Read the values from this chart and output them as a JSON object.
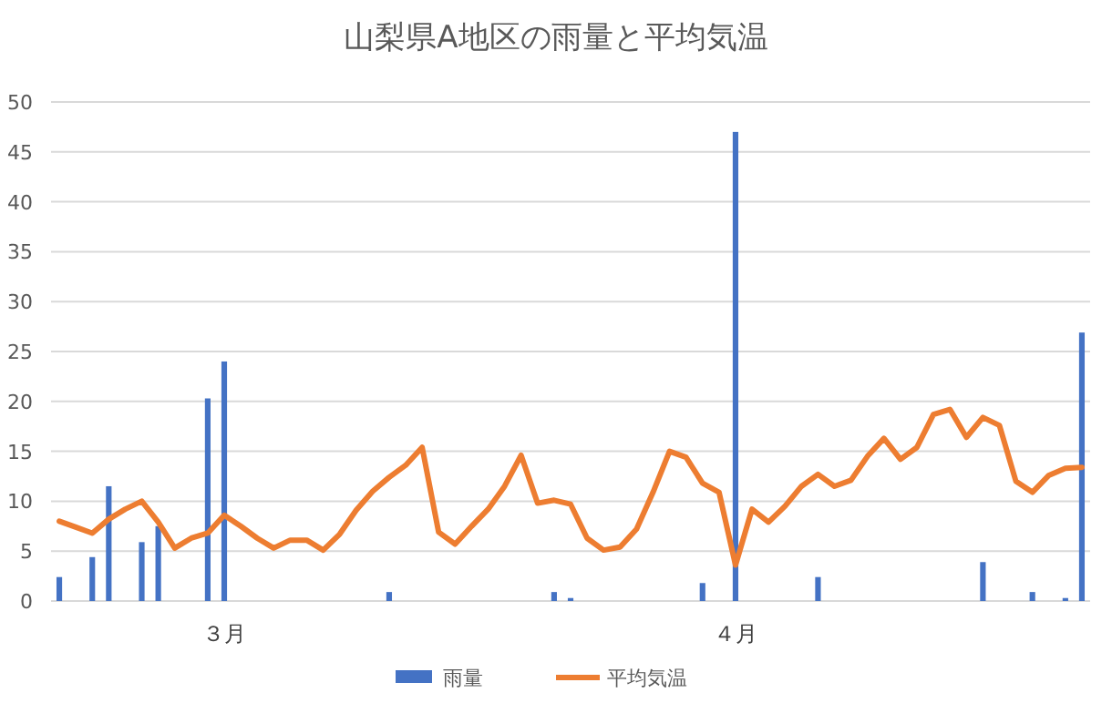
{
  "chart_data": {
    "type": "bar",
    "title": "山梨県A地区の雨量と平均気温",
    "categories": [
      null,
      null,
      null,
      null,
      null,
      null,
      null,
      null,
      null,
      null,
      "３月",
      null,
      null,
      null,
      null,
      null,
      null,
      null,
      null,
      null,
      null,
      null,
      null,
      null,
      null,
      null,
      null,
      null,
      null,
      null,
      null,
      null,
      null,
      null,
      null,
      null,
      null,
      null,
      null,
      null,
      null,
      "４月",
      null,
      null,
      null,
      null,
      null,
      null,
      null,
      null,
      null,
      null,
      null,
      null,
      null,
      null,
      null,
      null,
      null,
      null,
      null,
      null,
      null
    ],
    "series": [
      {
        "name": "雨量",
        "color": "#4472c4",
        "values": [
          2.4,
          0,
          4.4,
          11.5,
          0,
          5.9,
          7.5,
          0,
          0,
          20.3,
          24,
          0,
          0,
          0,
          0,
          0,
          0,
          0,
          0,
          0,
          0.9,
          0,
          0,
          0,
          0,
          0,
          0,
          0,
          0,
          0,
          0.9,
          0.3,
          0,
          0,
          0,
          0,
          0,
          0,
          0,
          1.8,
          0,
          47,
          0,
          0,
          0,
          0,
          2.4,
          0,
          0,
          0,
          0,
          0,
          0,
          0,
          0,
          0,
          3.9,
          0,
          0,
          0.9,
          0,
          0.3,
          26.9
        ]
      },
      {
        "name": "平均気温",
        "type": "line",
        "color": "#ed7d31",
        "values": [
          8.0,
          7.4,
          6.8,
          8.2,
          9.2,
          10.0,
          7.9,
          5.3,
          6.3,
          6.8,
          8.6,
          7.5,
          6.3,
          5.3,
          6.1,
          6.1,
          5.1,
          6.7,
          9.1,
          11.0,
          12.4,
          13.6,
          15.4,
          6.9,
          5.7,
          7.5,
          9.2,
          11.5,
          14.6,
          9.8,
          10.1,
          9.7,
          6.3,
          5.1,
          5.4,
          7.2,
          10.9,
          15.0,
          14.4,
          11.8,
          10.9,
          3.6,
          9.2,
          7.9,
          9.5,
          11.5,
          12.7,
          11.5,
          12.1,
          14.5,
          16.3,
          14.2,
          15.4,
          18.7,
          19.2,
          16.4,
          18.4,
          17.6,
          12.0,
          10.9,
          12.6,
          13.3,
          13.4
        ]
      }
    ],
    "ylim": [
      0,
      50
    ],
    "yticks": [
      0,
      5,
      10,
      15,
      20,
      25,
      30,
      35,
      40,
      45,
      50
    ],
    "grid": "y",
    "legend": "bottom"
  }
}
